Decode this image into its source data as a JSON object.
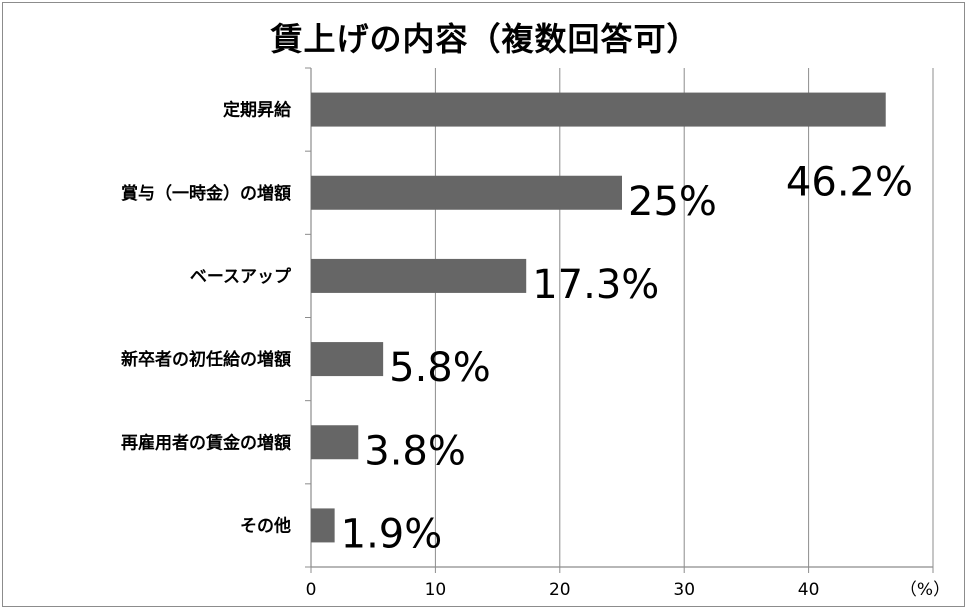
{
  "chart_data": {
    "type": "bar",
    "orientation": "horizontal",
    "title": "賃上げの内容（複数回答可）",
    "categories": [
      "定期昇給",
      "賞与（一時金）の増額",
      "ベースアップ",
      "新卒者の初任給の増額",
      "再雇用者の賃金の増額",
      "その他"
    ],
    "values": [
      46.2,
      25,
      17.3,
      5.8,
      3.8,
      1.9
    ],
    "data_labels": [
      "46.2%",
      "25%",
      "17.3%",
      "5.8%",
      "3.8%",
      "1.9%"
    ],
    "xlim": [
      0,
      50
    ],
    "xticks": [
      0,
      10,
      20,
      30,
      40
    ],
    "x_unit": "（%）",
    "grid": true,
    "bar_color": "#666666"
  }
}
